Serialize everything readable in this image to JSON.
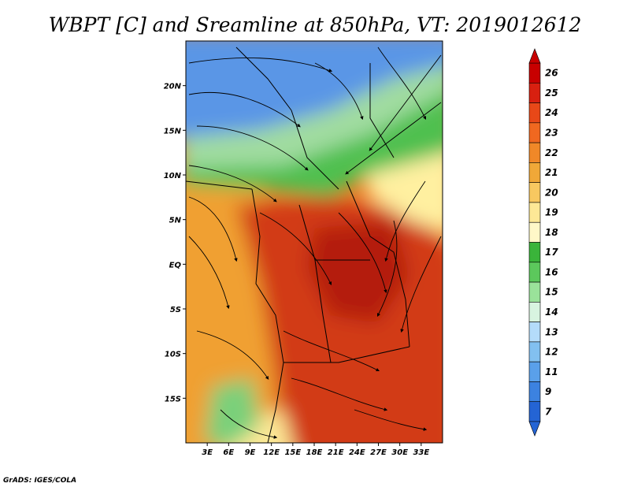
{
  "title": "WBPT [C] and Sreamline at 850hPa, VT: 2019012612",
  "credit": "GrADS: IGES/COLA",
  "map": {
    "lon_range": [
      0,
      36
    ],
    "lat_range": [
      -20,
      25
    ],
    "lon_ticks": [
      "3E",
      "6E",
      "9E",
      "12E",
      "15E",
      "18E",
      "21E",
      "24E",
      "27E",
      "30E",
      "33E"
    ],
    "lat_ticks": [
      "20N",
      "15N",
      "10N",
      "5N",
      "EQ",
      "5S",
      "10S",
      "15S"
    ],
    "zones": [
      {
        "level": "cold-north",
        "color": "#5a96e6"
      },
      {
        "level": "cool-band",
        "color": "#a0dca0"
      },
      {
        "level": "green-band",
        "color": "#50c050"
      },
      {
        "level": "warm-west",
        "color": "#f0a030"
      },
      {
        "level": "hot-center",
        "color": "#d23a12"
      },
      {
        "level": "hottest-core",
        "color": "#b41e0a"
      },
      {
        "level": "pale-east",
        "color": "#fff0a0"
      }
    ]
  },
  "colorbar": {
    "levels": [
      "26",
      "25",
      "24",
      "23",
      "22",
      "21",
      "20",
      "19",
      "18",
      "17",
      "16",
      "15",
      "14",
      "13",
      "12",
      "11",
      "9",
      "7"
    ],
    "colors": [
      "#c80000",
      "#d82010",
      "#e84818",
      "#f06820",
      "#f08828",
      "#f0a838",
      "#f8c860",
      "#fde896",
      "#fff8c8",
      "#3ab43a",
      "#5cc85c",
      "#9ae29a",
      "#d8f4e0",
      "#b4dcfa",
      "#82c0f0",
      "#5aa0ea",
      "#3c82e0",
      "#2464d4"
    ]
  }
}
